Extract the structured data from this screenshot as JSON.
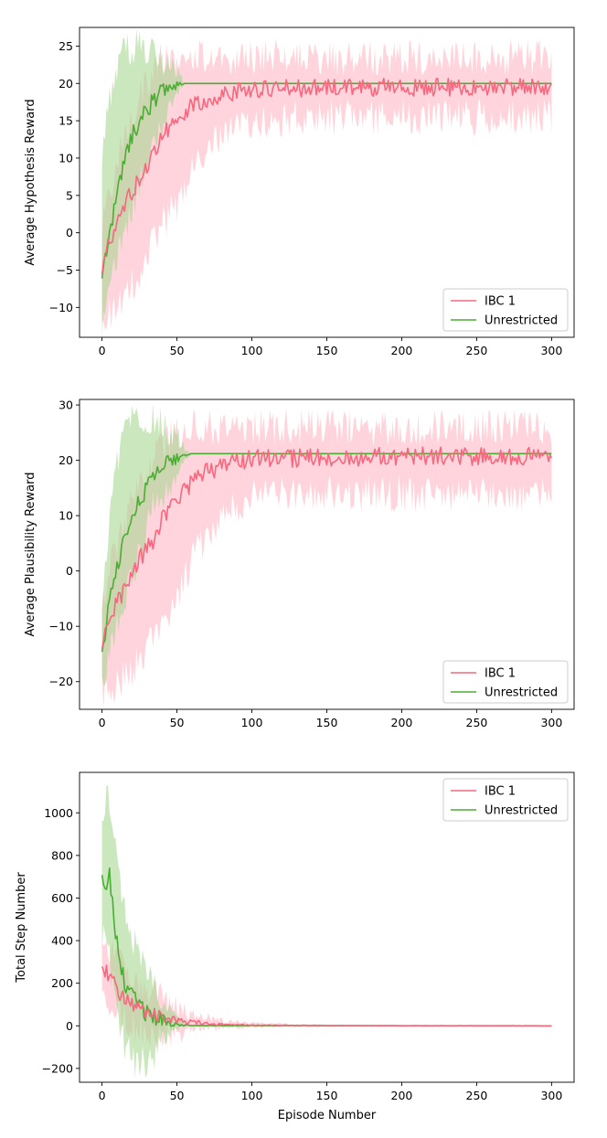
{
  "colors": {
    "ibc": "#f7687f",
    "unrestricted": "#4aae33",
    "ibc_band": "#ffc0cc",
    "unrestricted_band": "#a5d68f"
  },
  "chart_data": [
    {
      "type": "line",
      "ylabel": "Average Hypothesis Reward",
      "xlabel": "",
      "xlim": [
        -15,
        315
      ],
      "ylim": [
        -14,
        27.5
      ],
      "xticks": [
        0,
        50,
        100,
        150,
        200,
        250,
        300
      ],
      "yticks": [
        -10,
        -5,
        0,
        5,
        10,
        15,
        20,
        25
      ],
      "legend": {
        "position": "lower-right",
        "entries": [
          "IBC 1",
          "Unrestricted"
        ]
      },
      "series": [
        {
          "name": "IBC 1",
          "key": "ibc",
          "mean": [
            [
              0,
              -5.5
            ],
            [
              5,
              -1
            ],
            [
              10,
              1.5
            ],
            [
              15,
              3.5
            ],
            [
              20,
              5.5
            ],
            [
              25,
              7
            ],
            [
              30,
              9
            ],
            [
              35,
              11
            ],
            [
              40,
              13
            ],
            [
              45,
              14
            ],
            [
              50,
              15
            ],
            [
              55,
              16
            ],
            [
              60,
              17
            ],
            [
              65,
              17.5
            ],
            [
              70,
              18
            ],
            [
              80,
              18.5
            ],
            [
              90,
              19
            ],
            [
              100,
              19.2
            ],
            [
              150,
              19.4
            ],
            [
              200,
              19.5
            ],
            [
              250,
              19.5
            ],
            [
              300,
              19.5
            ]
          ],
          "band": [
            [
              0,
              -11.5,
              0
            ],
            [
              10,
              -10,
              10
            ],
            [
              20,
              -7,
              16
            ],
            [
              30,
              -3,
              20
            ],
            [
              40,
              1,
              22.5
            ],
            [
              50,
              4,
              23.5
            ],
            [
              60,
              8,
              23.5
            ],
            [
              70,
              11,
              23.5
            ],
            [
              80,
              13,
              23.5
            ],
            [
              90,
              14,
              23.5
            ],
            [
              100,
              15,
              23.5
            ],
            [
              150,
              15.5,
              23.5
            ],
            [
              200,
              15.5,
              23.5
            ],
            [
              250,
              15.5,
              23.5
            ],
            [
              300,
              15.5,
              23.5
            ]
          ]
        },
        {
          "name": "Unrestricted",
          "key": "unrestricted",
          "mean": [
            [
              0,
              -6
            ],
            [
              5,
              0
            ],
            [
              10,
              5
            ],
            [
              15,
              10
            ],
            [
              20,
              13
            ],
            [
              25,
              15
            ],
            [
              30,
              16.5
            ],
            [
              35,
              18
            ],
            [
              40,
              19
            ],
            [
              45,
              19.5
            ],
            [
              50,
              19.8
            ],
            [
              55,
              20
            ],
            [
              300,
              20
            ]
          ],
          "band": [
            [
              0,
              -12,
              10
            ],
            [
              5,
              -8,
              18
            ],
            [
              10,
              -4,
              22
            ],
            [
              15,
              -1,
              24.5
            ],
            [
              20,
              3,
              25
            ],
            [
              25,
              7,
              25
            ],
            [
              30,
              10,
              25
            ],
            [
              35,
              13,
              24.5
            ],
            [
              40,
              15,
              24
            ],
            [
              45,
              17,
              23
            ],
            [
              50,
              18.5,
              22
            ],
            [
              55,
              20,
              20
            ],
            [
              300,
              20,
              20
            ]
          ]
        }
      ]
    },
    {
      "type": "line",
      "ylabel": "Average Plausibility Reward",
      "xlabel": "",
      "xlim": [
        -15,
        315
      ],
      "ylim": [
        -25,
        31
      ],
      "xticks": [
        0,
        50,
        100,
        150,
        200,
        250,
        300
      ],
      "yticks": [
        -20,
        -10,
        0,
        10,
        20,
        30
      ],
      "legend": {
        "position": "lower-right",
        "entries": [
          "IBC 1",
          "Unrestricted"
        ]
      },
      "series": [
        {
          "name": "IBC 1",
          "key": "ibc",
          "mean": [
            [
              0,
              -14
            ],
            [
              5,
              -9
            ],
            [
              10,
              -6
            ],
            [
              15,
              -3
            ],
            [
              20,
              -1
            ],
            [
              25,
              2
            ],
            [
              30,
              4
            ],
            [
              35,
              6
            ],
            [
              40,
              9
            ],
            [
              45,
              11
            ],
            [
              50,
              13
            ],
            [
              55,
              14.5
            ],
            [
              60,
              16
            ],
            [
              65,
              17
            ],
            [
              70,
              18
            ],
            [
              80,
              19
            ],
            [
              90,
              20
            ],
            [
              100,
              20.3
            ],
            [
              150,
              20.5
            ],
            [
              200,
              20.7
            ],
            [
              250,
              20.8
            ],
            [
              300,
              20.8
            ]
          ],
          "band": [
            [
              0,
              -22,
              -5
            ],
            [
              10,
              -21,
              5
            ],
            [
              20,
              -18,
              12
            ],
            [
              30,
              -14,
              18
            ],
            [
              40,
              -10,
              23
            ],
            [
              50,
              -5,
              25
            ],
            [
              60,
              2,
              26
            ],
            [
              70,
              7,
              26
            ],
            [
              80,
              10,
              26
            ],
            [
              90,
              12,
              26
            ],
            [
              100,
              13.5,
              26
            ],
            [
              150,
              14,
              26
            ],
            [
              200,
              14,
              26
            ],
            [
              250,
              14,
              26
            ],
            [
              300,
              14,
              26
            ]
          ]
        },
        {
          "name": "Unrestricted",
          "key": "unrestricted",
          "mean": [
            [
              0,
              -14.5
            ],
            [
              5,
              -6
            ],
            [
              10,
              1
            ],
            [
              15,
              6
            ],
            [
              20,
              10
            ],
            [
              25,
              13
            ],
            [
              30,
              15
            ],
            [
              35,
              17
            ],
            [
              40,
              18.5
            ],
            [
              45,
              19.5
            ],
            [
              50,
              20.5
            ],
            [
              55,
              21
            ],
            [
              60,
              21.2
            ],
            [
              300,
              21.2
            ]
          ],
          "band": [
            [
              0,
              -20,
              -6
            ],
            [
              5,
              -15,
              10
            ],
            [
              10,
              -10,
              19
            ],
            [
              15,
              -6,
              25
            ],
            [
              20,
              -1,
              28
            ],
            [
              25,
              4,
              28
            ],
            [
              30,
              8,
              28
            ],
            [
              35,
              12,
              27.5
            ],
            [
              40,
              14,
              27
            ],
            [
              45,
              16,
              26
            ],
            [
              50,
              18,
              24.5
            ],
            [
              55,
              20,
              22
            ],
            [
              60,
              21.2,
              21.2
            ],
            [
              300,
              21.2,
              21.2
            ]
          ]
        }
      ]
    },
    {
      "type": "line",
      "ylabel": "Total Step Number",
      "xlabel": "Episode Number",
      "xlim": [
        -15,
        315
      ],
      "ylim": [
        -265,
        1190
      ],
      "xticks": [
        0,
        50,
        100,
        150,
        200,
        250,
        300
      ],
      "yticks": [
        -200,
        0,
        200,
        400,
        600,
        800,
        1000
      ],
      "legend": {
        "position": "top-right",
        "entries": [
          "IBC 1",
          "Unrestricted"
        ]
      },
      "series": [
        {
          "name": "IBC 1",
          "key": "ibc",
          "mean": [
            [
              0,
              280
            ],
            [
              5,
              220
            ],
            [
              10,
              170
            ],
            [
              15,
              130
            ],
            [
              20,
              100
            ],
            [
              25,
              80
            ],
            [
              30,
              65
            ],
            [
              35,
              50
            ],
            [
              40,
              40
            ],
            [
              45,
              30
            ],
            [
              50,
              22
            ],
            [
              60,
              15
            ],
            [
              70,
              10
            ],
            [
              80,
              6
            ],
            [
              100,
              3
            ],
            [
              150,
              1
            ],
            [
              200,
              0
            ],
            [
              300,
              0
            ]
          ],
          "band": [
            [
              0,
              150,
              430
            ],
            [
              10,
              50,
              310
            ],
            [
              20,
              0,
              230
            ],
            [
              30,
              -40,
              180
            ],
            [
              40,
              -50,
              130
            ],
            [
              50,
              -40,
              90
            ],
            [
              60,
              -25,
              60
            ],
            [
              70,
              -15,
              40
            ],
            [
              80,
              -10,
              25
            ],
            [
              100,
              -5,
              12
            ],
            [
              150,
              -2,
              5
            ],
            [
              200,
              0,
              2
            ],
            [
              300,
              0,
              0
            ]
          ]
        },
        {
          "name": "Unrestricted",
          "key": "unrestricted",
          "mean": [
            [
              0,
              710
            ],
            [
              3,
              640
            ],
            [
              5,
              700
            ],
            [
              8,
              500
            ],
            [
              10,
              400
            ],
            [
              13,
              270
            ],
            [
              16,
              180
            ],
            [
              20,
              140
            ],
            [
              25,
              90
            ],
            [
              30,
              60
            ],
            [
              35,
              40
            ],
            [
              40,
              25
            ],
            [
              45,
              12
            ],
            [
              50,
              5
            ],
            [
              60,
              1
            ],
            [
              300,
              0
            ]
          ],
          "band": [
            [
              0,
              420,
              1000
            ],
            [
              3,
              360,
              1120
            ],
            [
              5,
              300,
              1050
            ],
            [
              10,
              100,
              780
            ],
            [
              15,
              -80,
              560
            ],
            [
              20,
              -150,
              420
            ],
            [
              25,
              -190,
              360
            ],
            [
              30,
              -170,
              300
            ],
            [
              35,
              -120,
              230
            ],
            [
              40,
              -70,
              150
            ],
            [
              45,
              -30,
              80
            ],
            [
              50,
              -10,
              30
            ],
            [
              60,
              0,
              5
            ],
            [
              300,
              0,
              0
            ]
          ]
        }
      ]
    }
  ]
}
